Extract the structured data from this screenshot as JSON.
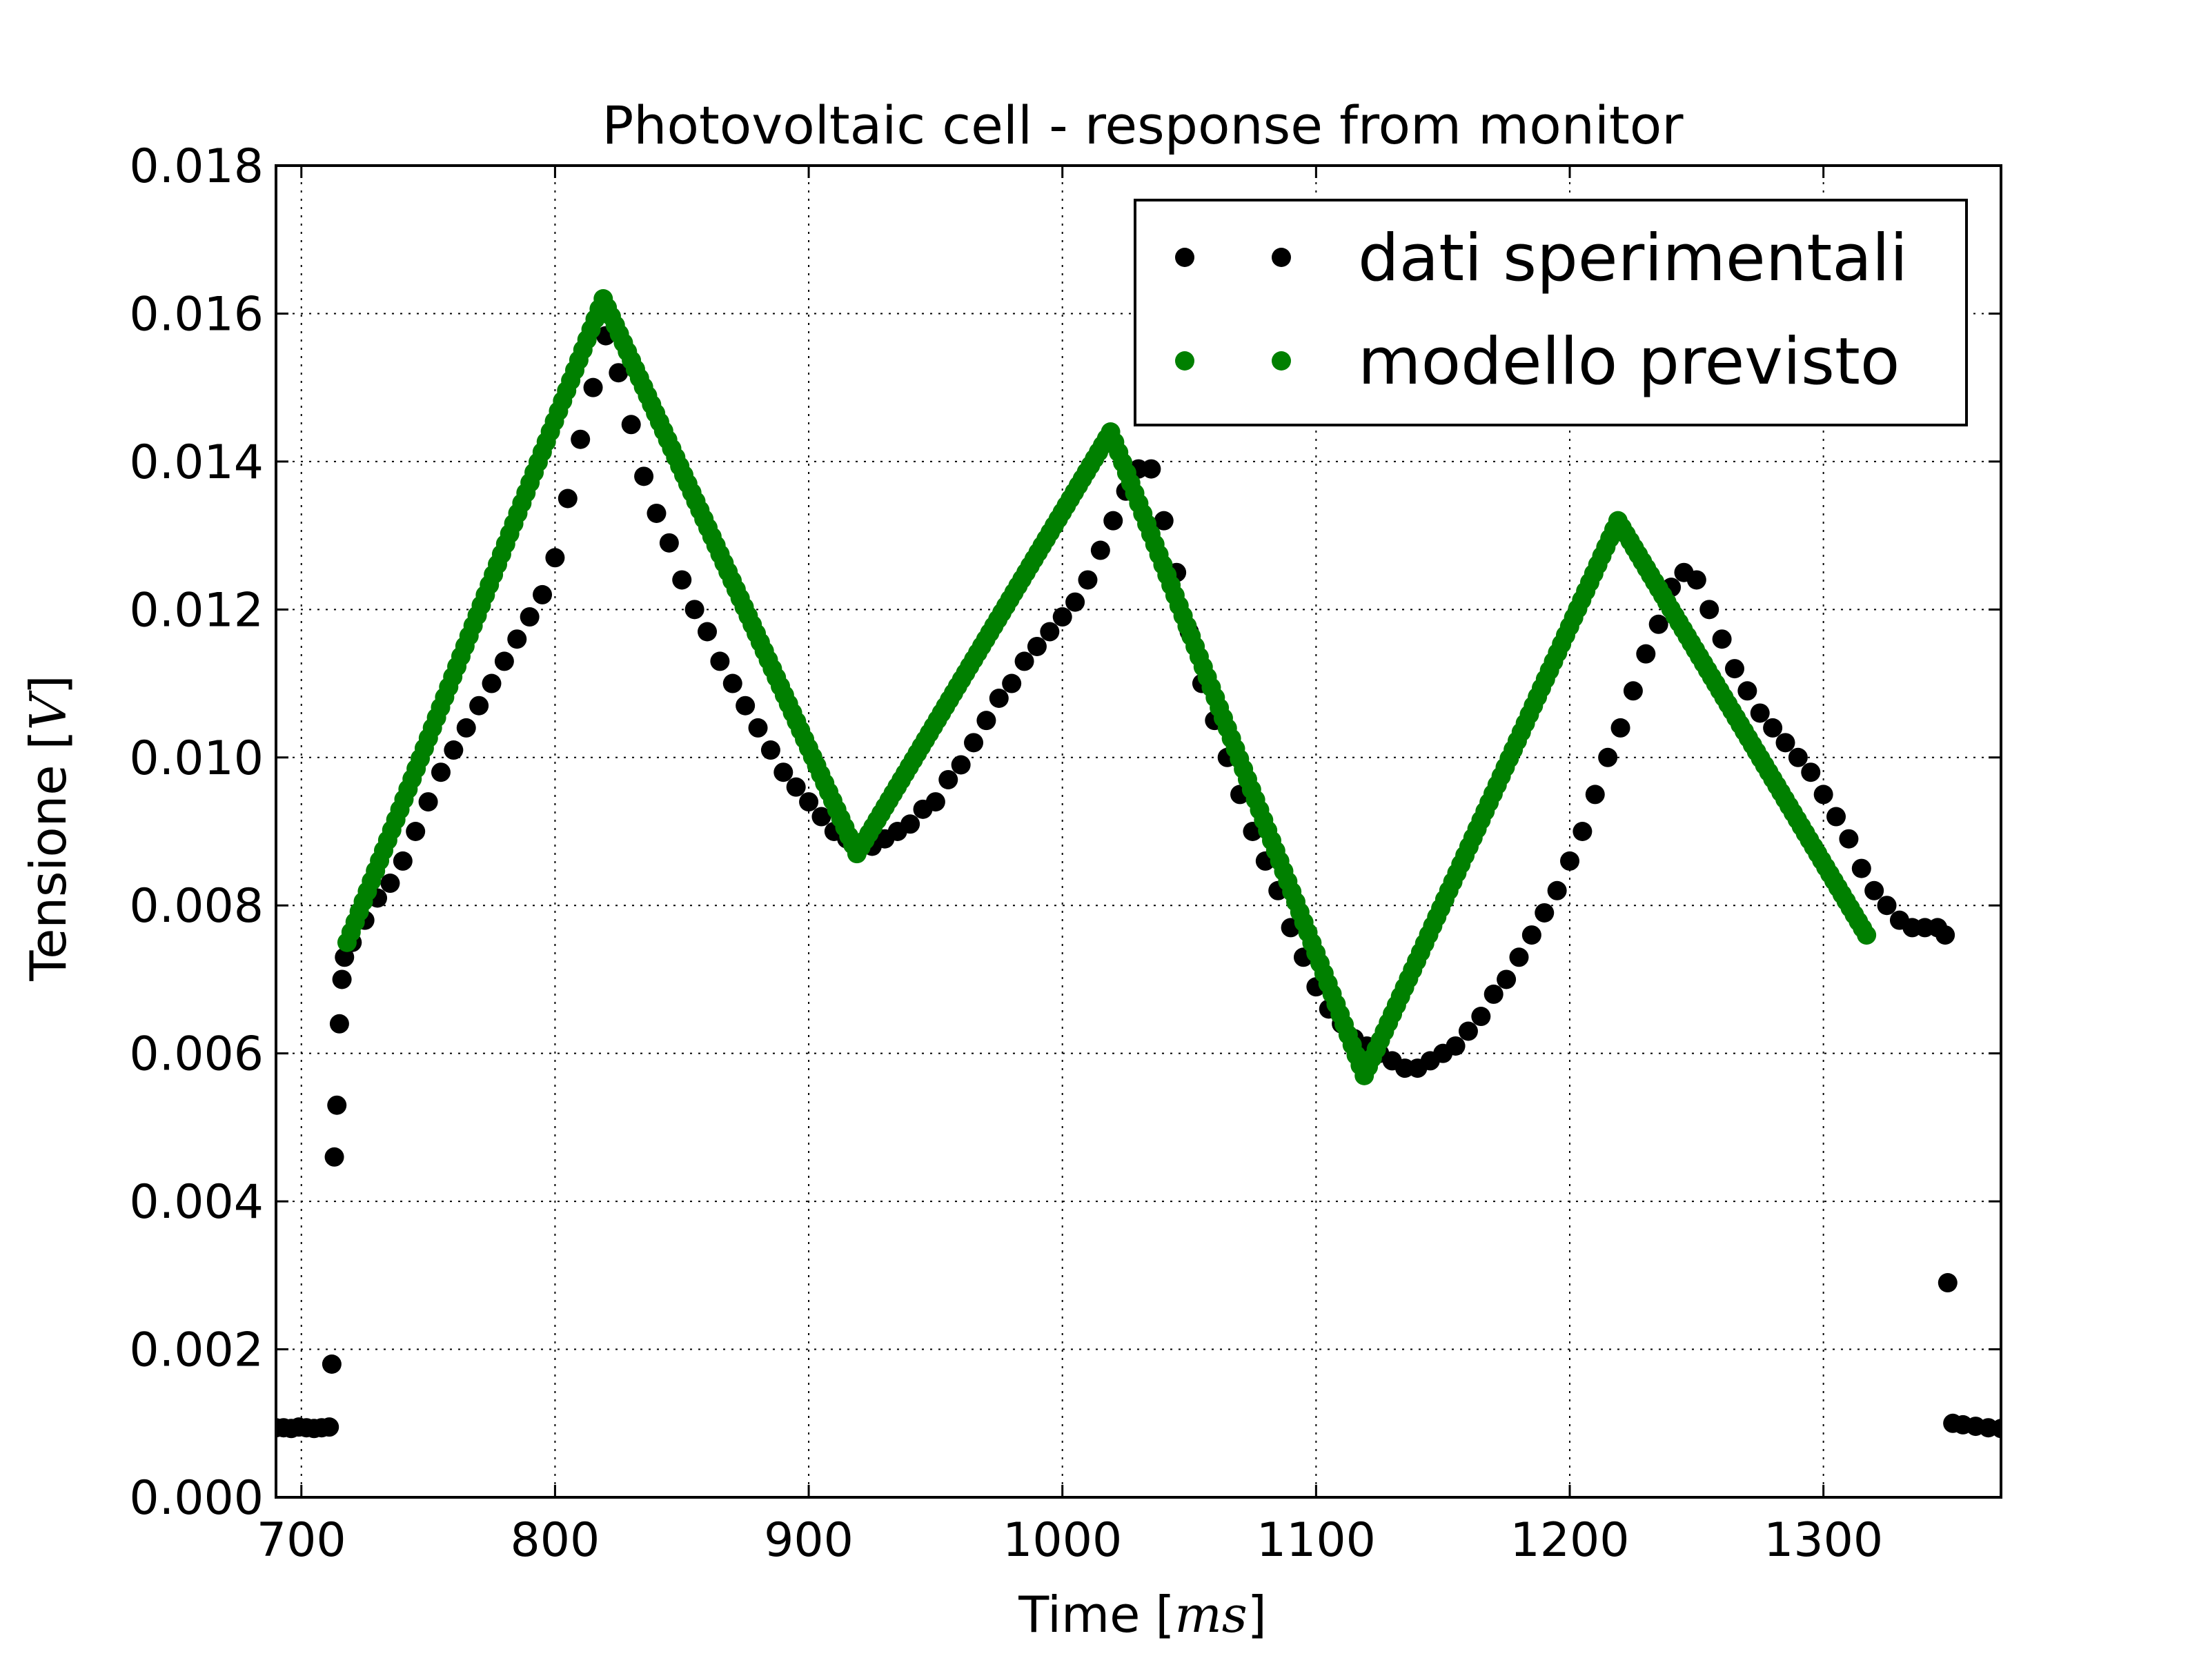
{
  "chart_data": {
    "type": "scatter",
    "title": "Photovoltaic cell - response from monitor",
    "xlabel_text": "Time",
    "xlabel_unit": "ms",
    "ylabel_text": "Tensione",
    "ylabel_unit": "V",
    "xlim": [
      690,
      1370
    ],
    "ylim": [
      0.0,
      0.018
    ],
    "xticks": [
      700,
      800,
      900,
      1000,
      1100,
      1200,
      1300
    ],
    "yticks": [
      0.0,
      0.002,
      0.004,
      0.006,
      0.008,
      0.01,
      0.012,
      0.014,
      0.016,
      0.018
    ],
    "xtick_labels": [
      "700",
      "800",
      "900",
      "1000",
      "1100",
      "1200",
      "1300"
    ],
    "ytick_labels": [
      "0.000",
      "0.002",
      "0.004",
      "0.006",
      "0.008",
      "0.010",
      "0.012",
      "0.014",
      "0.016",
      "0.018"
    ],
    "grid": true,
    "legend_position": "top-right",
    "series": [
      {
        "name": "dati sperimentali",
        "color": "#000000",
        "points": [
          [
            690,
            0.00094
          ],
          [
            693,
            0.00094
          ],
          [
            696,
            0.00093
          ],
          [
            699,
            0.00095
          ],
          [
            702,
            0.00094
          ],
          [
            705,
            0.00093
          ],
          [
            708,
            0.00094
          ],
          [
            711,
            0.00095
          ],
          [
            712,
            0.0018
          ],
          [
            713,
            0.0046
          ],
          [
            714,
            0.0053
          ],
          [
            715,
            0.0064
          ],
          [
            716,
            0.007
          ],
          [
            717,
            0.0073
          ],
          [
            720,
            0.0075
          ],
          [
            725,
            0.0078
          ],
          [
            730,
            0.0081
          ],
          [
            735,
            0.0083
          ],
          [
            740,
            0.0086
          ],
          [
            745,
            0.009
          ],
          [
            750,
            0.0094
          ],
          [
            755,
            0.0098
          ],
          [
            760,
            0.0101
          ],
          [
            765,
            0.0104
          ],
          [
            770,
            0.0107
          ],
          [
            775,
            0.011
          ],
          [
            780,
            0.0113
          ],
          [
            785,
            0.0116
          ],
          [
            790,
            0.0119
          ],
          [
            795,
            0.0122
          ],
          [
            800,
            0.0127
          ],
          [
            805,
            0.0135
          ],
          [
            810,
            0.0143
          ],
          [
            815,
            0.015
          ],
          [
            820,
            0.0157
          ],
          [
            825,
            0.0152
          ],
          [
            830,
            0.0145
          ],
          [
            835,
            0.0138
          ],
          [
            840,
            0.0133
          ],
          [
            845,
            0.0129
          ],
          [
            850,
            0.0124
          ],
          [
            855,
            0.012
          ],
          [
            860,
            0.0117
          ],
          [
            865,
            0.0113
          ],
          [
            870,
            0.011
          ],
          [
            875,
            0.0107
          ],
          [
            880,
            0.0104
          ],
          [
            885,
            0.0101
          ],
          [
            890,
            0.0098
          ],
          [
            895,
            0.0096
          ],
          [
            900,
            0.0094
          ],
          [
            905,
            0.0092
          ],
          [
            910,
            0.009
          ],
          [
            915,
            0.0089
          ],
          [
            920,
            0.0088
          ],
          [
            925,
            0.0088
          ],
          [
            930,
            0.0089
          ],
          [
            935,
            0.009
          ],
          [
            940,
            0.0091
          ],
          [
            945,
            0.0093
          ],
          [
            950,
            0.0094
          ],
          [
            955,
            0.0097
          ],
          [
            960,
            0.0099
          ],
          [
            965,
            0.0102
          ],
          [
            970,
            0.0105
          ],
          [
            975,
            0.0108
          ],
          [
            980,
            0.011
          ],
          [
            985,
            0.0113
          ],
          [
            990,
            0.0115
          ],
          [
            995,
            0.0117
          ],
          [
            1000,
            0.0119
          ],
          [
            1005,
            0.0121
          ],
          [
            1010,
            0.0124
          ],
          [
            1015,
            0.0128
          ],
          [
            1020,
            0.0132
          ],
          [
            1025,
            0.0136
          ],
          [
            1030,
            0.0139
          ],
          [
            1035,
            0.0139
          ],
          [
            1040,
            0.0132
          ],
          [
            1045,
            0.0125
          ],
          [
            1050,
            0.0117
          ],
          [
            1055,
            0.011
          ],
          [
            1060,
            0.0105
          ],
          [
            1065,
            0.01
          ],
          [
            1070,
            0.0095
          ],
          [
            1075,
            0.009
          ],
          [
            1080,
            0.0086
          ],
          [
            1085,
            0.0082
          ],
          [
            1090,
            0.0077
          ],
          [
            1095,
            0.0073
          ],
          [
            1100,
            0.0069
          ],
          [
            1105,
            0.0066
          ],
          [
            1110,
            0.0064
          ],
          [
            1115,
            0.0062
          ],
          [
            1120,
            0.0061
          ],
          [
            1125,
            0.006
          ],
          [
            1130,
            0.0059
          ],
          [
            1135,
            0.0058
          ],
          [
            1140,
            0.0058
          ],
          [
            1145,
            0.0059
          ],
          [
            1150,
            0.006
          ],
          [
            1155,
            0.0061
          ],
          [
            1160,
            0.0063
          ],
          [
            1165,
            0.0065
          ],
          [
            1170,
            0.0068
          ],
          [
            1175,
            0.007
          ],
          [
            1180,
            0.0073
          ],
          [
            1185,
            0.0076
          ],
          [
            1190,
            0.0079
          ],
          [
            1195,
            0.0082
          ],
          [
            1200,
            0.0086
          ],
          [
            1205,
            0.009
          ],
          [
            1210,
            0.0095
          ],
          [
            1215,
            0.01
          ],
          [
            1220,
            0.0104
          ],
          [
            1225,
            0.0109
          ],
          [
            1230,
            0.0114
          ],
          [
            1235,
            0.0118
          ],
          [
            1240,
            0.0123
          ],
          [
            1245,
            0.0125
          ],
          [
            1250,
            0.0124
          ],
          [
            1255,
            0.012
          ],
          [
            1260,
            0.0116
          ],
          [
            1265,
            0.0112
          ],
          [
            1270,
            0.0109
          ],
          [
            1275,
            0.0106
          ],
          [
            1280,
            0.0104
          ],
          [
            1285,
            0.0102
          ],
          [
            1290,
            0.01
          ],
          [
            1295,
            0.0098
          ],
          [
            1300,
            0.0095
          ],
          [
            1305,
            0.0092
          ],
          [
            1310,
            0.0089
          ],
          [
            1315,
            0.0085
          ],
          [
            1320,
            0.0082
          ],
          [
            1325,
            0.008
          ],
          [
            1330,
            0.0078
          ],
          [
            1335,
            0.0077
          ],
          [
            1340,
            0.0077
          ],
          [
            1345,
            0.0077
          ],
          [
            1348,
            0.0076
          ],
          [
            1349,
            0.0029
          ],
          [
            1351,
            0.001
          ],
          [
            1355,
            0.00098
          ],
          [
            1360,
            0.00096
          ],
          [
            1365,
            0.00094
          ],
          [
            1370,
            0.00093
          ]
        ]
      },
      {
        "name": "modello previsto",
        "color": "#008000",
        "vertices": [
          [
            718,
            0.0075
          ],
          [
            819,
            0.0162
          ],
          [
            919,
            0.0087
          ],
          [
            1019,
            0.0144
          ],
          [
            1119,
            0.0057
          ],
          [
            1219,
            0.0132
          ],
          [
            1317,
            0.0076
          ]
        ]
      }
    ]
  }
}
